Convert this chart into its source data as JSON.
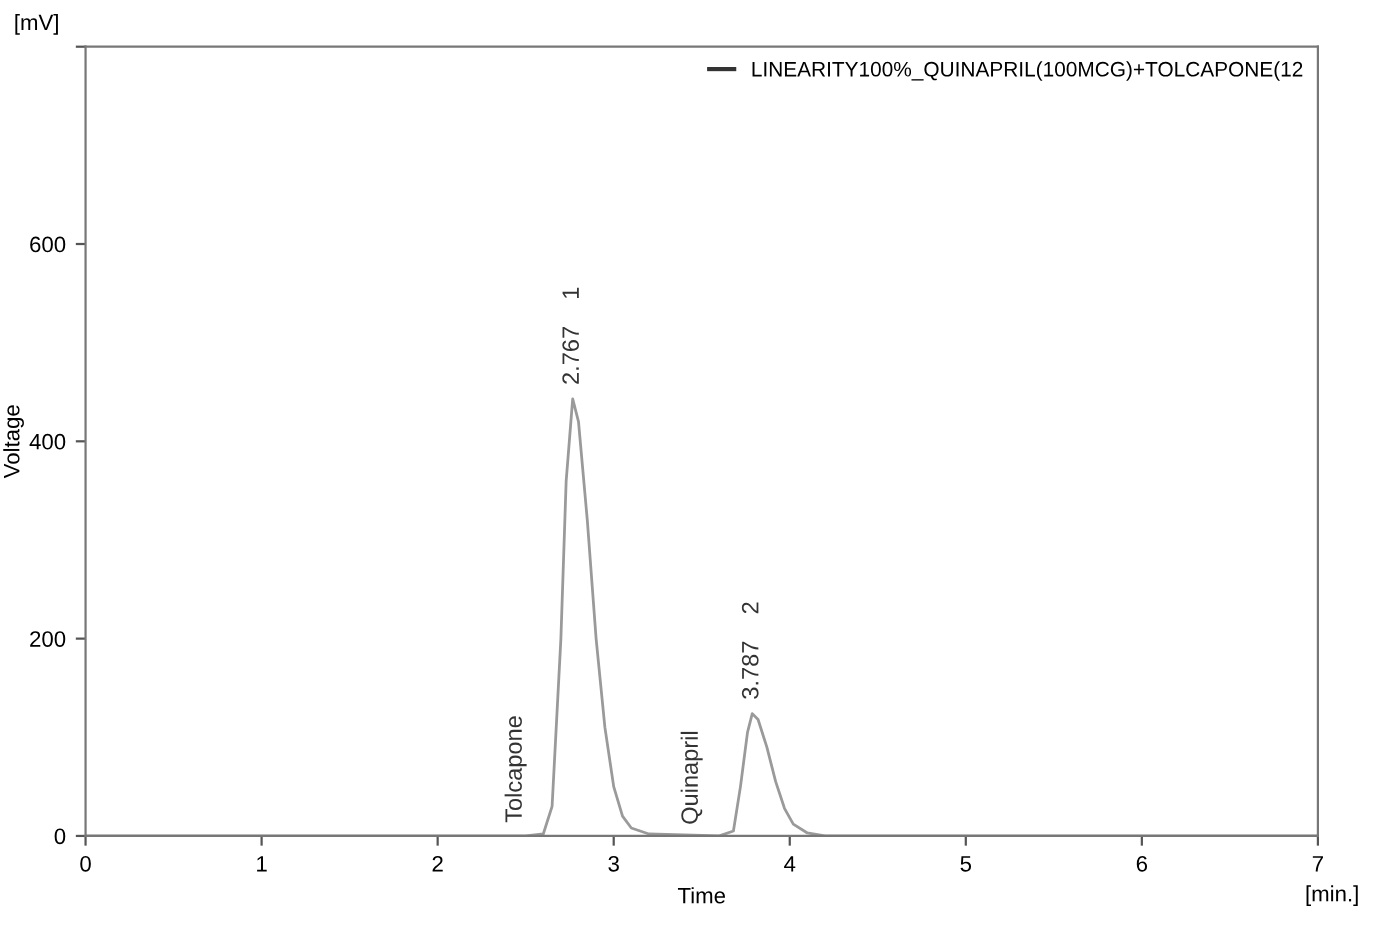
{
  "chart_data": {
    "type": "line",
    "xlabel": "Time",
    "ylabel": "Voltage",
    "x": [
      0,
      2.5,
      2.6,
      2.65,
      2.7,
      2.73,
      2.767,
      2.8,
      2.85,
      2.9,
      2.95,
      3.0,
      3.05,
      3.1,
      3.2,
      3.6,
      3.68,
      3.72,
      3.76,
      3.787,
      3.82,
      3.87,
      3.92,
      3.97,
      4.02,
      4.1,
      4.2,
      7
    ],
    "series": [
      {
        "name": "LINEARITY100%_QUINAPRIL(100MCG)+TOLCAPONE(12",
        "color": "#9a9a9a",
        "values": [
          0,
          0,
          2,
          30,
          200,
          360,
          443,
          420,
          320,
          200,
          110,
          50,
          20,
          8,
          2,
          0,
          5,
          50,
          105,
          124,
          118,
          90,
          55,
          28,
          12,
          3,
          0,
          0
        ]
      }
    ],
    "xlim": [
      0,
      7
    ],
    "xticks": [
      0,
      1,
      2,
      3,
      4,
      5,
      6,
      7
    ],
    "ylim": [
      0,
      800
    ],
    "yticks": [
      0,
      200,
      400,
      600,
      {
        "value": 800,
        "label": null
      }
    ],
    "annotations": [
      {
        "text": "2.767    1",
        "x": 2.767,
        "y": 443
      },
      {
        "text": "Tolcapone",
        "x": 2.6,
        "y": 2
      },
      {
        "text": "3.787    2",
        "x": 3.787,
        "y": 124
      },
      {
        "text": "Quinapril",
        "x": 3.6,
        "y": 0
      },
      "[mV]",
      "[min.]"
    ],
    "legend": "top right",
    "grid": false,
    "marker": "none",
    "line_style": "solid"
  }
}
